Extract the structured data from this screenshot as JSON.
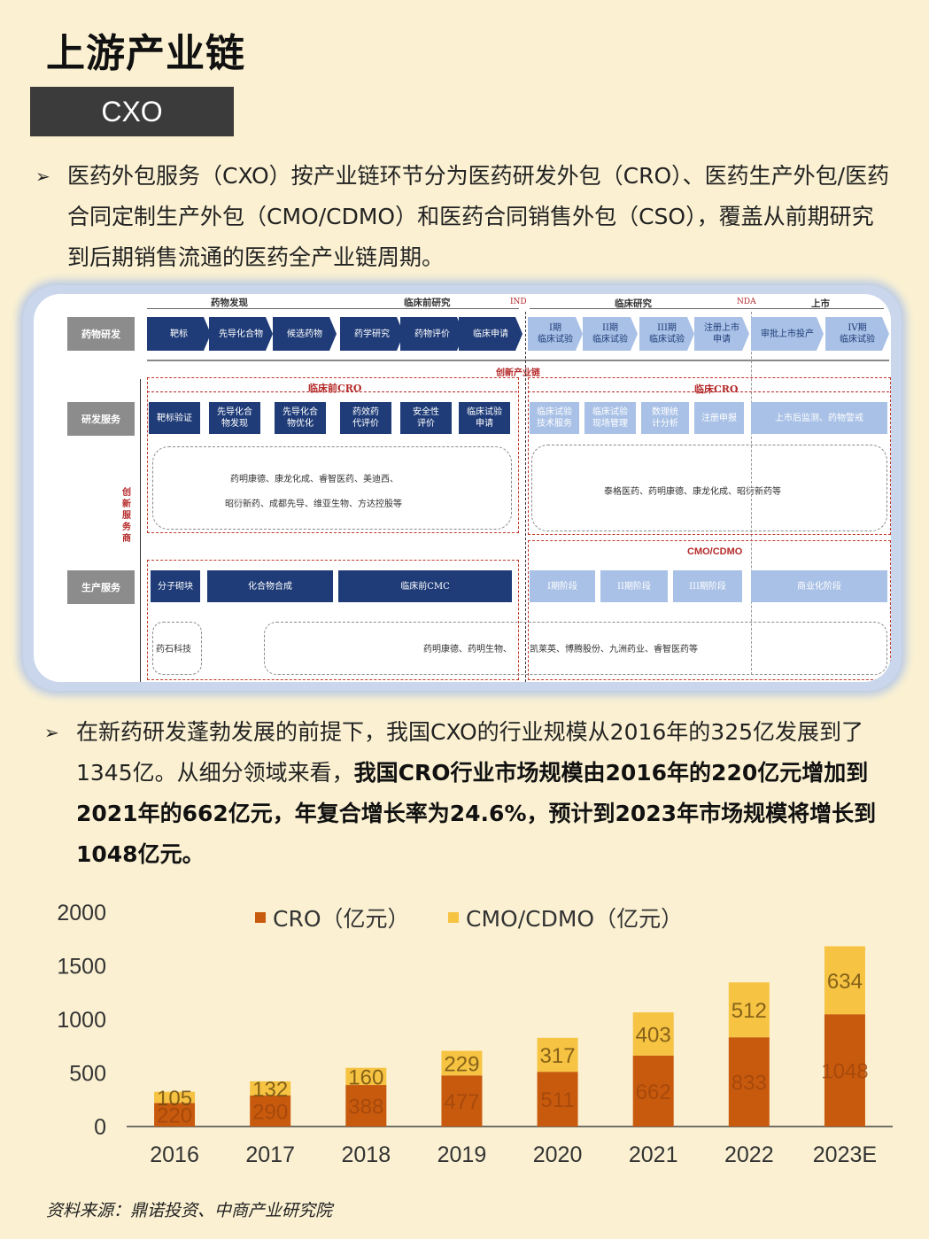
{
  "page": {
    "title": "上游产业链",
    "tag": "CXO",
    "para1": "医药外包服务（CXO）按产业链环节分为医药研发外包（CRO）、医药生产外包/医药合同定制生产外包（CMO/CDMO）和医药合同销售外包（CSO），覆盖从前期研究到后期销售流通的医药全产业链周期。",
    "para2_normal": "在新药研发蓬勃发展的前提下，我国CXO的行业规模从2016年的325亿发展到了1345亿。从细分领域来看，",
    "para2_bold": "我国CRO行业市场规模由2016年的220亿元增加到2021年的662亿元，年复合增长率为24.6%，预计到2023年市场规模将增长到1048亿元。",
    "source": "资料来源：鼎诺投资、中商产业研究院",
    "bullet_glyph": "➢"
  },
  "diagram": {
    "phases": [
      "药物发现",
      "临床前研究",
      "IND",
      "临床研究",
      "NDA",
      "上市"
    ],
    "rows": [
      "药物研发",
      "研发服务",
      "生产服务"
    ],
    "side_label": "创新服务商",
    "chain_label": "创新产业链",
    "rd_steps": [
      "靶标",
      "先导化合物",
      "候选药物",
      "药学研究",
      "药物评价",
      "临床申请"
    ],
    "clinical_steps": [
      "I期\n临床试验",
      "II期\n临床试验",
      "III期\n临床试验",
      "注册上市\n申请",
      "审批上市投产",
      "IV期\n临床试验"
    ],
    "preclinical_cro": "临床前CRO",
    "clinical_cro": "临床CRO",
    "service_pre": [
      "靶标验证",
      "先导化合\n物发现",
      "先导化合\n物优化",
      "药效药\n代评价",
      "安全性\n评价",
      "临床试验\n申请"
    ],
    "service_clin": [
      "临床试验\n技术服务",
      "临床试验\n现场管理",
      "数理统\n计分析",
      "注册申报",
      "上市后监测、药物警戒"
    ],
    "companies_pre_1": "药明康德、康龙化成、睿智医药、美迪西、",
    "companies_pre_2": "昭衍新药、成都先导、维亚生物、方达控股等",
    "companies_clin": "泰格医药、药明康德、康龙化成、昭衍新药等",
    "cmo_label": "CMO/CDMO",
    "prod_pre": [
      "分子砌块",
      "化合物合成",
      "临床前CMC"
    ],
    "prod_clin": [
      "I期阶段",
      "II期阶段",
      "III期阶段",
      "商业化阶段"
    ],
    "prod_co_left": "药石科技",
    "prod_co_right_1": "药明康德、药明生物、",
    "prod_co_right_2": "凯莱英、博腾股份、九洲药业、睿智医药等"
  },
  "chart_data": {
    "type": "bar",
    "stacked": true,
    "categories": [
      "2016",
      "2017",
      "2018",
      "2019",
      "2020",
      "2021",
      "2022",
      "2023E"
    ],
    "series": [
      {
        "name": "CRO（亿元）",
        "values": [
          220,
          290,
          388,
          477,
          511,
          662,
          833,
          1048
        ],
        "color": "#c85a0e"
      },
      {
        "name": "CMO/CDMO（亿元）",
        "values": [
          105,
          132,
          160,
          229,
          317,
          403,
          512,
          634
        ],
        "color": "#f6c342"
      }
    ],
    "ylim": [
      0,
      2000
    ],
    "yticks": [
      0,
      500,
      1000,
      1500,
      2000
    ],
    "legend": "top",
    "grid": false
  }
}
